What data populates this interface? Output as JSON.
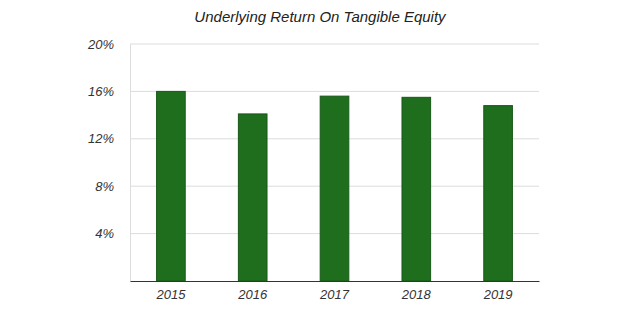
{
  "chart_data": {
    "type": "bar",
    "title": "Underlying Return On Tangible Equity",
    "categories": [
      "2015",
      "2016",
      "2017",
      "2018",
      "2019"
    ],
    "values": [
      16.0,
      14.1,
      15.6,
      15.5,
      14.8
    ],
    "color": "#1e6e1e",
    "ylim": [
      0,
      20
    ],
    "yticks": [
      {
        "value": 4,
        "label": "4%"
      },
      {
        "value": 8,
        "label": "8%"
      },
      {
        "value": 12,
        "label": "12%"
      },
      {
        "value": 16,
        "label": "16%"
      },
      {
        "value": 20,
        "label": "20%"
      }
    ],
    "grid": true
  }
}
